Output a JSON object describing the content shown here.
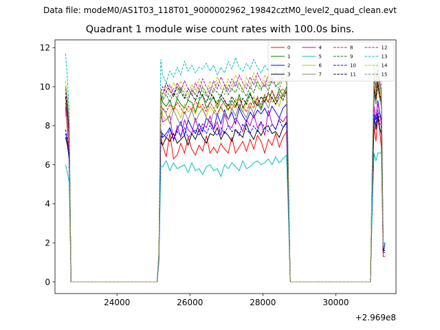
{
  "figure": {
    "suptitle": "Data file: modeM0/AS1T03_118T01_9000002962_19842cztM0_level2_quad_clean.evt"
  },
  "chart_data": {
    "type": "line",
    "title": "Quadrant 1 module wise count rates with 100.0s bins.",
    "xlabel": "",
    "ylabel": "",
    "x_offset_label": "+2.969e8",
    "x_offset": 296900000,
    "xlim": [
      22300,
      31650
    ],
    "ylim": [
      -0.6,
      12.4
    ],
    "xticks": [
      24000,
      26000,
      28000,
      30000
    ],
    "xtick_labels": [
      "24000",
      "26000",
      "28000",
      "30000"
    ],
    "yticks": [
      0,
      2,
      4,
      6,
      8,
      10,
      12
    ],
    "ytick_labels": [
      "0",
      "2",
      "4",
      "6",
      "8",
      "10",
      "12"
    ],
    "grid": false,
    "legend": {
      "position": "top-right",
      "columns": 4
    },
    "x": [
      22590,
      22640,
      22690,
      22740,
      25040,
      25100,
      25150,
      25200,
      25250,
      25350,
      25450,
      25550,
      25650,
      25750,
      25850,
      25950,
      26050,
      26150,
      26250,
      26350,
      26450,
      26550,
      26650,
      26750,
      26850,
      26950,
      27050,
      27150,
      27250,
      27350,
      27450,
      27550,
      27650,
      27750,
      27850,
      27950,
      28050,
      28150,
      28250,
      28350,
      28450,
      28550,
      28650,
      28700,
      28750,
      28800,
      28850,
      30900,
      30950,
      31000,
      31050,
      31100,
      31150,
      31200,
      31250,
      31300,
      31350
    ],
    "series": [
      {
        "name": "0",
        "color": "#ff0000",
        "dashed": false,
        "values": [
          8.9,
          7.8,
          6.5,
          0.0,
          0.0,
          0.0,
          1.4,
          7.5,
          7.0,
          6.4,
          7.6,
          6.3,
          6.5,
          7.1,
          6.6,
          7.4,
          6.8,
          6.5,
          7.0,
          6.7,
          7.5,
          6.6,
          6.9,
          6.6,
          7.1,
          6.8,
          6.6,
          7.4,
          6.6,
          6.9,
          7.2,
          6.7,
          7.3,
          6.8,
          7.5,
          7.2,
          6.6,
          7.3,
          7.0,
          7.6,
          6.9,
          7.4,
          7.7,
          4.0,
          0.0,
          0.0,
          0.0,
          0.0,
          0.0,
          4.8,
          8.0,
          7.2,
          8.4,
          7.8,
          6.9,
          1.3,
          1.3
        ]
      },
      {
        "name": "1",
        "color": "#008000",
        "dashed": false,
        "values": [
          9.2,
          8.6,
          7.6,
          0.0,
          0.0,
          0.0,
          1.2,
          9.7,
          9.2,
          9.0,
          9.3,
          8.8,
          9.4,
          9.1,
          8.9,
          9.3,
          9.2,
          8.7,
          9.3,
          9.6,
          8.9,
          9.2,
          9.5,
          8.9,
          9.4,
          9.1,
          8.8,
          9.3,
          9.0,
          9.6,
          8.9,
          9.3,
          9.7,
          9.1,
          9.4,
          8.9,
          9.5,
          9.2,
          9.8,
          9.3,
          9.9,
          9.5,
          10.0,
          5.2,
          0.0,
          0.0,
          0.0,
          0.0,
          0.0,
          5.4,
          9.8,
          9.3,
          10.2,
          9.5,
          9.2,
          1.5,
          1.5
        ]
      },
      {
        "name": "2",
        "color": "#0000ff",
        "dashed": false,
        "values": [
          7.6,
          7.2,
          6.2,
          0.0,
          0.0,
          0.0,
          1.3,
          7.8,
          7.4,
          7.6,
          7.9,
          7.3,
          7.8,
          8.2,
          7.5,
          8.3,
          7.9,
          7.6,
          8.1,
          7.7,
          8.4,
          8.2,
          7.8,
          8.6,
          8.1,
          8.8,
          8.3,
          8.7,
          8.1,
          8.9,
          8.5,
          8.2,
          8.7,
          8.4,
          8.8,
          8.6,
          8.9,
          8.5,
          9.0,
          8.7,
          8.4,
          8.9,
          9.1,
          4.6,
          0.0,
          0.0,
          0.0,
          0.0,
          0.0,
          5.0,
          8.6,
          8.3,
          9.3,
          8.7,
          8.3,
          1.5,
          2.0
        ]
      },
      {
        "name": "3",
        "color": "#000000",
        "dashed": false,
        "values": [
          7.4,
          7.0,
          6.3,
          0.0,
          0.0,
          0.0,
          1.3,
          7.2,
          7.0,
          7.4,
          7.2,
          7.6,
          7.1,
          7.3,
          7.5,
          7.0,
          7.6,
          7.3,
          7.8,
          7.4,
          7.1,
          7.6,
          7.5,
          7.9,
          7.3,
          7.7,
          7.5,
          7.2,
          7.8,
          7.6,
          7.4,
          8.1,
          7.6,
          7.3,
          7.8,
          7.5,
          7.9,
          8.0,
          7.6,
          7.7,
          7.4,
          7.9,
          8.2,
          4.2,
          0.0,
          0.0,
          0.0,
          0.0,
          0.0,
          4.8,
          8.4,
          7.8,
          8.6,
          7.9,
          7.6,
          1.5,
          1.5
        ]
      },
      {
        "name": "4",
        "color": "#bf00bf",
        "dashed": false,
        "values": [
          9.0,
          8.4,
          7.5,
          0.0,
          0.0,
          0.0,
          1.4,
          8.8,
          8.2,
          8.3,
          8.5,
          7.2,
          8.0,
          7.4,
          8.3,
          7.8,
          7.6,
          8.4,
          7.7,
          8.1,
          7.9,
          8.5,
          7.8,
          8.2,
          7.5,
          8.6,
          8.0,
          7.9,
          8.4,
          8.1,
          7.7,
          8.3,
          8.0,
          8.6,
          7.9,
          8.2,
          7.5,
          8.8,
          8.1,
          7.8,
          8.4,
          8.2,
          8.5,
          4.4,
          0.0,
          0.0,
          0.0,
          0.0,
          0.0,
          5.0,
          9.0,
          8.4,
          9.2,
          8.6,
          8.1,
          1.5,
          1.5
        ]
      },
      {
        "name": "5",
        "color": "#00bfbf",
        "dashed": false,
        "values": [
          6.0,
          5.6,
          5.1,
          0.0,
          0.0,
          0.0,
          1.0,
          5.9,
          5.9,
          6.2,
          5.7,
          6.1,
          5.8,
          5.9,
          6.0,
          5.6,
          6.1,
          5.7,
          5.8,
          5.5,
          5.9,
          6.0,
          5.7,
          5.8,
          5.4,
          6.0,
          5.8,
          6.1,
          5.9,
          5.7,
          6.2,
          5.8,
          5.9,
          6.1,
          6.2,
          6.0,
          6.1,
          6.3,
          6.0,
          6.4,
          6.1,
          6.3,
          6.5,
          3.4,
          0.0,
          0.0,
          0.0,
          0.0,
          0.0,
          3.8,
          6.6,
          6.2,
          6.6,
          6.6,
          6.6,
          2.0,
          2.0
        ]
      },
      {
        "name": "6",
        "color": "#bfbf00",
        "dashed": false,
        "values": [
          10.0,
          9.0,
          7.8,
          0.0,
          0.0,
          0.0,
          1.5,
          9.8,
          8.5,
          8.3,
          8.6,
          9.0,
          8.8,
          8.4,
          9.1,
          8.7,
          8.9,
          8.6,
          9.2,
          8.8,
          8.5,
          9.0,
          8.7,
          9.3,
          8.9,
          8.6,
          9.1,
          8.8,
          9.4,
          9.0,
          8.7,
          9.2,
          8.9,
          9.5,
          9.1,
          8.8,
          9.3,
          9.6,
          9.2,
          9.4,
          9.0,
          9.7,
          9.8,
          5.0,
          0.0,
          0.0,
          0.0,
          0.0,
          0.0,
          5.6,
          10.0,
          9.6,
          10.4,
          9.8,
          9.4,
          1.8,
          1.8
        ]
      },
      {
        "name": "7",
        "color": "#808080",
        "dashed": false,
        "values": [
          8.6,
          8.1,
          7.2,
          0.0,
          0.0,
          0.0,
          1.3,
          8.3,
          8.9,
          8.6,
          8.1,
          8.8,
          8.4,
          8.0,
          8.7,
          8.3,
          8.8,
          8.2,
          8.6,
          8.9,
          8.4,
          8.1,
          8.7,
          8.5,
          9.0,
          8.6,
          8.3,
          8.9,
          8.5,
          9.1,
          8.7,
          8.4,
          9.0,
          8.6,
          9.2,
          8.8,
          9.3,
          8.9,
          9.5,
          9.1,
          9.4,
          9.6,
          9.7,
          4.9,
          0.0,
          0.0,
          0.0,
          0.0,
          0.0,
          5.4,
          9.6,
          9.1,
          10.0,
          9.4,
          9.0,
          1.7,
          1.7
        ]
      },
      {
        "name": "8",
        "color": "#ff0000",
        "dashed": true,
        "values": [
          9.4,
          8.8,
          7.8,
          0.0,
          0.0,
          0.0,
          1.4,
          9.0,
          8.9,
          8.7,
          9.1,
          8.8,
          9.2,
          8.9,
          8.6,
          9.0,
          8.8,
          9.3,
          8.9,
          9.1,
          8.7,
          9.2,
          8.9,
          8.6,
          9.0,
          9.3,
          8.8,
          9.1,
          8.9,
          9.4,
          9.0,
          8.7,
          9.2,
          8.9,
          9.5,
          9.1,
          9.6,
          9.2,
          9.8,
          9.4,
          9.7,
          9.9,
          9.6,
          5.0,
          0.0,
          0.0,
          0.0,
          0.0,
          0.0,
          5.5,
          10.1,
          9.4,
          10.3,
          9.7,
          9.3,
          1.6,
          1.6
        ]
      },
      {
        "name": "9",
        "color": "#008000",
        "dashed": true,
        "values": [
          9.7,
          9.0,
          7.8,
          0.0,
          0.0,
          0.0,
          1.5,
          9.4,
          9.3,
          9.6,
          9.2,
          9.7,
          9.4,
          9.9,
          9.5,
          9.3,
          9.8,
          9.6,
          9.4,
          10.0,
          9.6,
          9.3,
          9.9,
          9.7,
          9.5,
          10.1,
          9.6,
          9.9,
          9.7,
          10.2,
          9.8,
          9.5,
          10.0,
          9.7,
          10.3,
          9.9,
          10.1,
          9.8,
          10.4,
          10.0,
          10.2,
          10.5,
          10.3,
          5.2,
          0.0,
          0.0,
          0.0,
          0.0,
          0.0,
          5.8,
          10.4,
          9.8,
          10.7,
          10.1,
          9.6,
          1.8,
          1.8
        ]
      },
      {
        "name": "10",
        "color": "#0000ff",
        "dashed": true,
        "values": [
          7.8,
          7.3,
          6.4,
          0.0,
          0.0,
          0.0,
          1.3,
          7.3,
          7.6,
          7.4,
          7.8,
          7.3,
          7.7,
          7.5,
          7.9,
          7.4,
          7.6,
          7.8,
          7.5,
          7.9,
          7.6,
          8.0,
          7.7,
          7.5,
          7.9,
          7.6,
          8.0,
          7.7,
          7.8,
          7.5,
          8.1,
          7.8,
          7.6,
          8.0,
          7.7,
          8.2,
          7.9,
          7.7,
          8.1,
          7.8,
          8.3,
          7.9,
          8.1,
          4.3,
          0.0,
          0.0,
          0.0,
          0.0,
          0.0,
          4.9,
          8.5,
          8.0,
          8.8,
          8.2,
          7.9,
          1.6,
          1.6
        ]
      },
      {
        "name": "11",
        "color": "#000000",
        "dashed": true,
        "values": [
          9.5,
          8.9,
          7.6,
          0.0,
          0.0,
          0.0,
          1.4,
          9.3,
          9.6,
          10.2,
          9.8,
          9.5,
          10.0,
          9.7,
          9.4,
          9.9,
          9.6,
          9.3,
          9.8,
          9.5,
          9.2,
          9.7,
          9.4,
          9.1,
          9.6,
          9.3,
          9.0,
          9.5,
          9.2,
          8.9,
          9.4,
          9.1,
          9.6,
          9.3,
          9.0,
          9.5,
          9.2,
          9.7,
          9.4,
          9.1,
          9.6,
          9.3,
          9.8,
          5.0,
          0.0,
          0.0,
          0.0,
          0.0,
          0.0,
          5.6,
          9.9,
          9.4,
          10.2,
          9.6,
          9.2,
          1.6,
          1.6
        ]
      },
      {
        "name": "12",
        "color": "#bf00bf",
        "dashed": true,
        "values": [
          9.9,
          9.2,
          8.0,
          0.0,
          0.0,
          0.0,
          1.5,
          9.6,
          10.0,
          9.7,
          10.1,
          9.6,
          10.2,
          9.8,
          10.3,
          9.9,
          9.6,
          10.2,
          9.8,
          10.4,
          10.0,
          9.7,
          10.3,
          9.9,
          10.5,
          10.1,
          9.8,
          10.4,
          10.0,
          10.6,
          10.2,
          9.9,
          10.5,
          10.1,
          10.7,
          10.3,
          10.0,
          10.6,
          10.2,
          10.8,
          10.4,
          10.7,
          10.9,
          5.5,
          0.0,
          0.0,
          0.0,
          0.0,
          0.0,
          6.0,
          10.6,
          10.0,
          10.9,
          10.3,
          9.8,
          1.8,
          1.8
        ]
      },
      {
        "name": "13",
        "color": "#00bfbf",
        "dashed": true,
        "values": [
          11.7,
          10.4,
          8.8,
          0.0,
          0.0,
          0.0,
          1.6,
          11.4,
          10.6,
          10.2,
          10.8,
          10.5,
          11.0,
          10.6,
          11.3,
          10.8,
          11.1,
          10.7,
          11.0,
          10.9,
          11.2,
          10.8,
          11.1,
          10.6,
          11.0,
          10.7,
          11.3,
          10.9,
          11.5,
          11.0,
          10.8,
          11.2,
          10.9,
          11.4,
          11.0,
          10.7,
          11.1,
          10.8,
          11.3,
          10.9,
          11.2,
          10.8,
          11.0,
          5.6,
          0.0,
          0.0,
          0.0,
          0.0,
          0.0,
          6.2,
          11.2,
          10.5,
          11.4,
          10.8,
          10.3,
          2.0,
          2.0
        ]
      },
      {
        "name": "14",
        "color": "#bfbf00",
        "dashed": true,
        "values": [
          10.3,
          9.5,
          8.1,
          0.0,
          0.0,
          0.0,
          1.5,
          9.9,
          9.6,
          10.0,
          9.7,
          10.2,
          9.8,
          10.3,
          9.9,
          9.6,
          10.1,
          9.8,
          10.4,
          10.0,
          9.7,
          10.3,
          9.9,
          10.5,
          10.1,
          9.8,
          10.4,
          10.0,
          10.6,
          10.2,
          9.9,
          10.5,
          10.1,
          10.7,
          10.3,
          10.0,
          10.6,
          10.2,
          10.8,
          10.4,
          10.1,
          10.7,
          10.5,
          5.3,
          0.0,
          0.0,
          0.0,
          0.0,
          0.0,
          5.9,
          10.9,
          10.2,
          11.1,
          10.5,
          10.0,
          1.9,
          1.9
        ]
      },
      {
        "name": "15",
        "color": "#808080",
        "dashed": true,
        "values": [
          10.0,
          9.3,
          8.0,
          0.0,
          0.0,
          0.0,
          1.4,
          9.7,
          9.4,
          9.8,
          9.5,
          9.9,
          9.6,
          10.0,
          9.7,
          9.4,
          9.9,
          9.6,
          10.1,
          9.8,
          9.5,
          10.0,
          9.7,
          10.2,
          9.9,
          9.6,
          10.1,
          9.8,
          10.3,
          9.9,
          9.7,
          10.2,
          9.9,
          10.4,
          10.0,
          9.8,
          10.3,
          10.0,
          10.5,
          10.1,
          9.9,
          10.4,
          10.2,
          5.2,
          0.0,
          0.0,
          0.0,
          0.0,
          0.0,
          5.7,
          10.5,
          9.9,
          10.8,
          10.2,
          9.7,
          1.7,
          1.7
        ]
      }
    ]
  }
}
